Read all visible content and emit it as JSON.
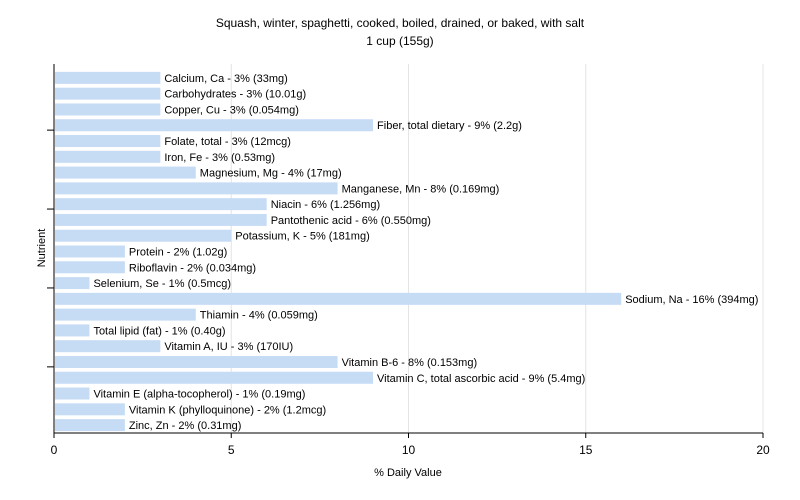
{
  "chart_data": {
    "type": "bar",
    "orientation": "horizontal",
    "title": "Squash, winter, spaghetti, cooked, boiled, drained, or baked, with salt",
    "subtitle": "1 cup (155g)",
    "xlabel": "% Daily Value",
    "ylabel": "Nutrient",
    "xlim": [
      0,
      20
    ],
    "xticks": [
      "0",
      "5",
      "10",
      "15",
      "20"
    ],
    "grid": "vertical",
    "bar_color": "#c6dcf5",
    "categories": [
      "Calcium, Ca",
      "Carbohydrates",
      "Copper, Cu",
      "Fiber, total dietary",
      "Folate, total",
      "Iron, Fe",
      "Magnesium, Mg",
      "Manganese, Mn",
      "Niacin",
      "Pantothenic acid",
      "Potassium, K",
      "Protein",
      "Riboflavin",
      "Selenium, Se",
      "Sodium, Na",
      "Thiamin",
      "Total lipid (fat)",
      "Vitamin A, IU",
      "Vitamin B-6",
      "Vitamin C, total ascorbic acid",
      "Vitamin E (alpha-tocopherol)",
      "Vitamin K (phylloquinone)",
      "Zinc, Zn"
    ],
    "values": [
      3,
      3,
      3,
      9,
      3,
      3,
      4,
      8,
      6,
      6,
      5,
      2,
      2,
      1,
      16,
      4,
      1,
      3,
      8,
      9,
      1,
      2,
      2
    ],
    "labels": [
      "Calcium, Ca - 3% (33mg)",
      "Carbohydrates - 3% (10.01g)",
      "Copper, Cu - 3% (0.054mg)",
      "Fiber, total dietary - 9% (2.2g)",
      "Folate, total - 3% (12mcg)",
      "Iron, Fe - 3% (0.53mg)",
      "Magnesium, Mg - 4% (17mg)",
      "Manganese, Mn - 8% (0.169mg)",
      "Niacin - 6% (1.256mg)",
      "Pantothenic acid - 6% (0.550mg)",
      "Potassium, K - 5% (181mg)",
      "Protein - 2% (1.02g)",
      "Riboflavin - 2% (0.034mg)",
      "Selenium, Se - 1% (0.5mcg)",
      "Sodium, Na - 16% (394mg)",
      "Thiamin - 4% (0.059mg)",
      "Total lipid (fat) - 1% (0.40g)",
      "Vitamin A, IU - 3% (170IU)",
      "Vitamin B-6 - 8% (0.153mg)",
      "Vitamin C, total ascorbic acid - 9% (5.4mg)",
      "Vitamin E (alpha-tocopherol) - 1% (0.19mg)",
      "Vitamin K (phylloquinone) - 2% (1.2mcg)",
      "Zinc, Zn - 2% (0.31mg)"
    ]
  }
}
